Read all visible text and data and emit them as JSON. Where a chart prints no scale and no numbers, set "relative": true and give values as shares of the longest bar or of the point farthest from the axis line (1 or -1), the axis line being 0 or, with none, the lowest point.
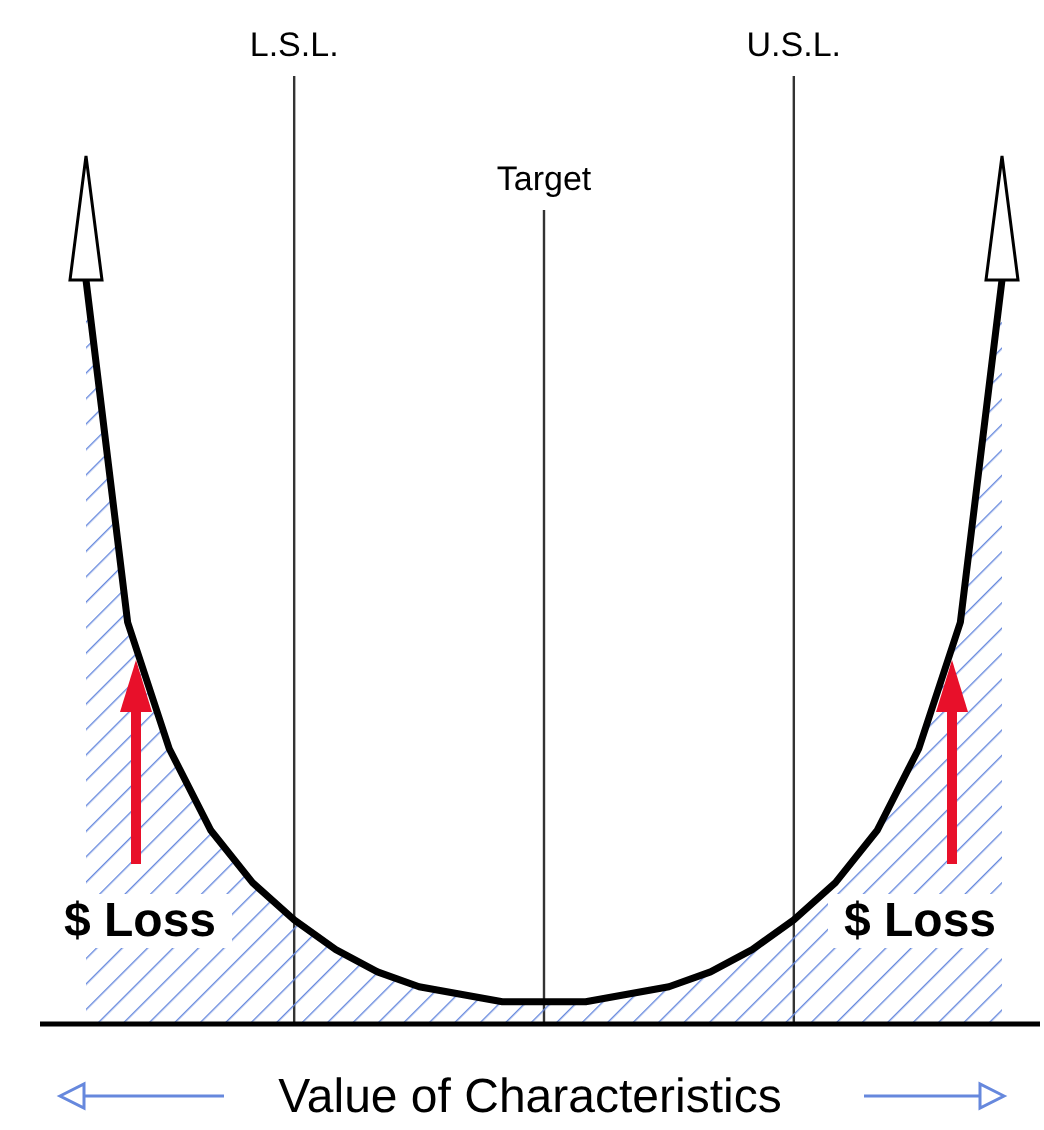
{
  "chart_data": {
    "type": "area",
    "relative": true,
    "xlabel": "Value of Characteristics",
    "grid": "x",
    "categories": [
      null,
      null,
      null,
      null,
      null,
      "L.S.L.",
      null,
      null,
      null,
      null,
      null,
      "Target",
      null,
      null,
      null,
      null,
      null,
      "U.S.L.",
      null,
      null,
      null,
      null,
      null
    ],
    "series": [
      {
        "color": "#000000",
        "values": [
          1,
          0.54,
          0.37,
          0.26,
          0.19,
          0.14,
          0.1,
          0.07,
          0.05,
          0.04,
          0.03,
          0.03,
          0.03,
          0.04,
          0.05,
          0.07,
          0.1,
          0.14,
          0.19,
          0.26,
          0.37,
          0.54,
          1
        ]
      }
    ],
    "annotations": [
      "$ Loss",
      "$ Loss"
    ]
  }
}
